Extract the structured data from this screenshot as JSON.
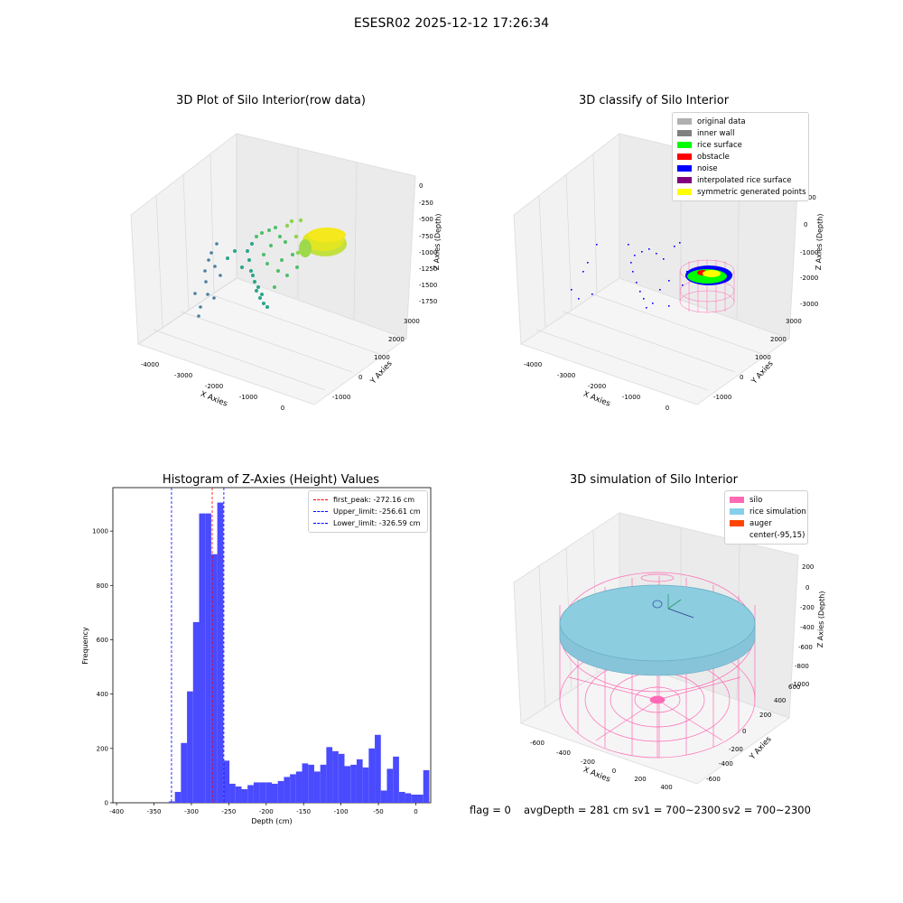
{
  "figure": {
    "suptitle": "ESESR02 2025-12-12 17:26:34"
  },
  "status": {
    "flag": "flag = 0",
    "avg_depth": "avgDepth = 281 cm",
    "sv1": "sv1 = 700~2300",
    "sv2": "sv2 = 700~2300"
  },
  "colors": {
    "histogram_bar": "#4a4aff",
    "peak_line": "#ff0000",
    "limit_line": "#0000ff"
  },
  "panels": {
    "raw": {
      "title": "3D Plot of Silo Interior(row data)",
      "xlabel": "X Axies",
      "ylabel": "Y Axies",
      "zlabel": "Z Axies (Depth)",
      "xticks": [
        "-4000",
        "-3000",
        "-2000",
        "-1000",
        "0"
      ],
      "yticks": [
        "-1000",
        "0",
        "1000",
        "2000",
        "3000"
      ],
      "zticks": [
        "0",
        "-250",
        "-500",
        "-750",
        "-1000",
        "-1250",
        "-1500",
        "-1750"
      ]
    },
    "classify": {
      "title": "3D classify of Silo Interior",
      "xlabel": "X Axies",
      "ylabel": "Y Axies",
      "zlabel": "Z Axies (Depth)",
      "xticks": [
        "-4000",
        "-3000",
        "-2000",
        "-1000",
        "0"
      ],
      "yticks": [
        "-1000",
        "0",
        "1000",
        "2000",
        "3000"
      ],
      "zticks": [
        "1000",
        "0",
        "-1000",
        "-2000",
        "-3000"
      ],
      "legend": [
        {
          "label": "original data",
          "color": "#b0b0b0"
        },
        {
          "label": "inner wall",
          "color": "#808080"
        },
        {
          "label": "rice surface",
          "color": "#00ff00"
        },
        {
          "label": "obstacle",
          "color": "#ff0000"
        },
        {
          "label": "noise",
          "color": "#0000ff"
        },
        {
          "label": "interpolated rice surface",
          "color": "#800080"
        },
        {
          "label": "symmetric generated points",
          "color": "#ffff00"
        }
      ]
    },
    "simulation": {
      "title": "3D simulation of Silo Interior",
      "xlabel": "X Axies",
      "ylabel": "Y Axies",
      "zlabel": "Z Axies (Depth)",
      "xticks": [
        "-600",
        "-400",
        "-200",
        "0",
        "200",
        "400"
      ],
      "yticks": [
        "-600",
        "-400",
        "-200",
        "0",
        "200",
        "400",
        "600"
      ],
      "zticks": [
        "200",
        "0",
        "-200",
        "-400",
        "-600",
        "-800",
        "-1000"
      ],
      "legend": [
        {
          "label": "silo",
          "color": "#ff69b4"
        },
        {
          "label": "rice simulation",
          "color": "#87ceeb"
        },
        {
          "label": "auger",
          "color": "#ff4500"
        },
        {
          "label": "center(-95,15)",
          "color": ""
        }
      ]
    }
  },
  "chart_data": [
    {
      "type": "bar",
      "title": "Histogram of Z-Axies (Height) Values",
      "xlabel": "Depth (cm)",
      "ylabel": "Frequency",
      "xlim": [
        -405,
        20
      ],
      "ylim": [
        0,
        1160
      ],
      "xticks": [
        -400,
        -350,
        -300,
        -250,
        -200,
        -150,
        -100,
        -50,
        0
      ],
      "yticks": [
        0,
        200,
        400,
        600,
        800,
        1000
      ],
      "bin_width": 8.1,
      "bin_start": -330.2,
      "values": [
        5,
        40,
        220,
        410,
        665,
        1065,
        1065,
        915,
        1105,
        155,
        70,
        60,
        50,
        65,
        75,
        75,
        75,
        70,
        80,
        95,
        105,
        115,
        145,
        140,
        115,
        140,
        205,
        190,
        180,
        135,
        140,
        160,
        130,
        200,
        250,
        45,
        125,
        170,
        40,
        35,
        30,
        30,
        120
      ],
      "vlines": [
        {
          "label": "first_peak: -272.16 cm",
          "x": -272.16,
          "color": "#ff0000"
        },
        {
          "label": "Upper_limit: -256.61 cm",
          "x": -256.61,
          "color": "#0000ff"
        },
        {
          "label": "Lower_limit: -326.59 cm",
          "x": -326.59,
          "color": "#0000ff"
        }
      ]
    }
  ]
}
